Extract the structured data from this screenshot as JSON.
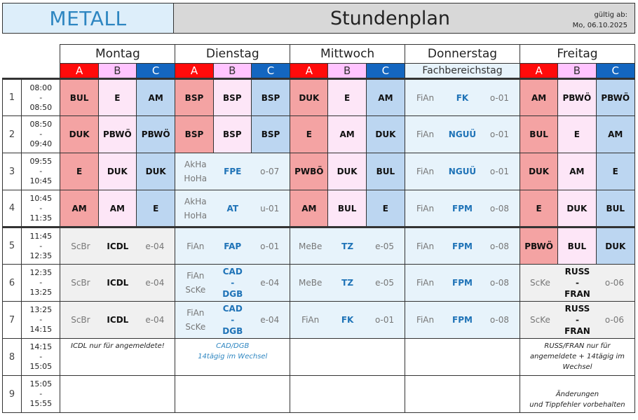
{
  "header": {
    "department": "METALL",
    "title": "Stundenplan",
    "valid_label": "gültig ab:",
    "valid_date": "Mo, 06.10.2025"
  },
  "days": [
    "Montag",
    "Dienstag",
    "Mittwoch",
    "Donnerstag",
    "Freitag"
  ],
  "groups": [
    "A",
    "B",
    "C"
  ],
  "fachbereichstag": "Fachbereichstag",
  "colors": {
    "A": "#ff0b0b",
    "B": "#ffc4ff",
    "C": "#1466c0",
    "cellA": "#f4a3a3",
    "cellB": "#fde6f7",
    "cellC": "#bcd6f1",
    "merged": "#e7f3fb",
    "grey": "#f0f0f0"
  },
  "periods": [
    {
      "num": "1",
      "start": "08:00",
      "sep": "-",
      "end": "08:50"
    },
    {
      "num": "2",
      "start": "08:50",
      "sep": "-",
      "end": "09:40"
    },
    {
      "num": "3",
      "start": "09:55",
      "sep": "-",
      "end": "10:45"
    },
    {
      "num": "4",
      "start": "10:45",
      "sep": "-",
      "end": "11:35"
    },
    {
      "num": "5",
      "start": "11:45",
      "sep": "-",
      "end": "12:35"
    },
    {
      "num": "6",
      "start": "12:35",
      "sep": "-",
      "end": "13:25"
    },
    {
      "num": "7",
      "start": "13:25",
      "sep": "-",
      "end": "14:15"
    },
    {
      "num": "8",
      "start": "14:15",
      "sep": "-",
      "end": "15:05"
    },
    {
      "num": "9",
      "start": "15:05",
      "sep": "-",
      "end": "15:55"
    }
  ],
  "cells": {
    "mo": [
      [
        "BUL",
        "E",
        "AM"
      ],
      [
        "DUK",
        "PBWÖ",
        "PBWÖ"
      ],
      [
        "E",
        "DUK",
        "DUK"
      ],
      [
        "AM",
        "AM",
        "E"
      ]
    ],
    "di": [
      [
        "BSP",
        "BSP",
        "BSP"
      ],
      [
        "BSP",
        "BSP",
        "BSP"
      ]
    ],
    "mi": [
      [
        "DUK",
        "E",
        "AM"
      ],
      [
        "E",
        "AM",
        "DUK"
      ],
      [
        "PWBÖ",
        "DUK",
        "BUL"
      ],
      [
        "AM",
        "BUL",
        "E"
      ]
    ],
    "fr": [
      [
        "AM",
        "PBWÖ",
        "PBWÖ"
      ],
      [
        "BUL",
        "E",
        "AM"
      ],
      [
        "DUK",
        "AM",
        "E"
      ],
      [
        "E",
        "DUK",
        "BUL"
      ],
      [
        "PBWÖ",
        "BUL",
        "DUK"
      ]
    ]
  },
  "merged": {
    "mo5": {
      "teacher": "ScBr",
      "subject": "ICDL",
      "room": "e-04"
    },
    "mo6": {
      "teacher": "ScBr",
      "subject": "ICDL",
      "room": "e-04"
    },
    "mo7": {
      "teacher": "ScBr",
      "subject": "ICDL",
      "room": "e-04"
    },
    "di3": {
      "teacher1": "AkHa",
      "teacher2": "HoHa",
      "subject": "FPE",
      "room": "o-07"
    },
    "di4": {
      "teacher1": "AkHa",
      "teacher2": "HoHa",
      "subject": "AT",
      "room": "u-01"
    },
    "di5": {
      "teacher": "FiAn",
      "subject": "FAP",
      "room": "o-01"
    },
    "di6": {
      "teacher1": "FiAn",
      "teacher2": "ScKe",
      "subject1": "CAD",
      "sep": "-",
      "subject2": "DGB",
      "room": "e-04"
    },
    "di7": {
      "teacher1": "FiAn",
      "teacher2": "ScKe",
      "subject1": "CAD",
      "sep": "-",
      "subject2": "DGB",
      "room": "e-04"
    },
    "mi5": {
      "teacher": "MeBe",
      "subject": "TZ",
      "room": "e-05"
    },
    "mi6": {
      "teacher": "MeBe",
      "subject": "TZ",
      "room": "e-05"
    },
    "mi7": {
      "teacher": "FiAn",
      "subject": "FK",
      "room": "o-01"
    },
    "do1": {
      "teacher": "FiAn",
      "subject": "FK",
      "room": "o-01"
    },
    "do2": {
      "teacher": "FiAn",
      "subject": "NGUÜ",
      "room": "o-01"
    },
    "do3": {
      "teacher": "FiAn",
      "subject": "NGUÜ",
      "room": "o-01"
    },
    "do4": {
      "teacher": "FiAn",
      "subject": "FPM",
      "room": "o-08"
    },
    "do5": {
      "teacher": "FiAn",
      "subject": "FPM",
      "room": "o-08"
    },
    "do6": {
      "teacher": "FiAn",
      "subject": "FPM",
      "room": "o-08"
    },
    "do7": {
      "teacher": "FiAn",
      "subject": "FPM",
      "room": "o-08"
    },
    "fr6": {
      "teacher": "ScKe",
      "subject1": "RUSS",
      "sep": "-",
      "subject2": "FRAN",
      "room": "o-06"
    },
    "fr7": {
      "teacher": "ScKe",
      "subject1": "RUSS",
      "sep": "-",
      "subject2": "FRAN",
      "room": "o-06"
    }
  },
  "notes": {
    "mo": "ICDL nur für angemeldete!",
    "di1": "CAD/DGB",
    "di2": "14tägig im Wechsel",
    "fr1": "RUSS/FRAN nur für",
    "fr2": "angemeldete + 14tägig im",
    "fr3": "Wechsel",
    "footnote1": "Änderungen",
    "footnote2": "und Tippfehler vorbehalten"
  }
}
